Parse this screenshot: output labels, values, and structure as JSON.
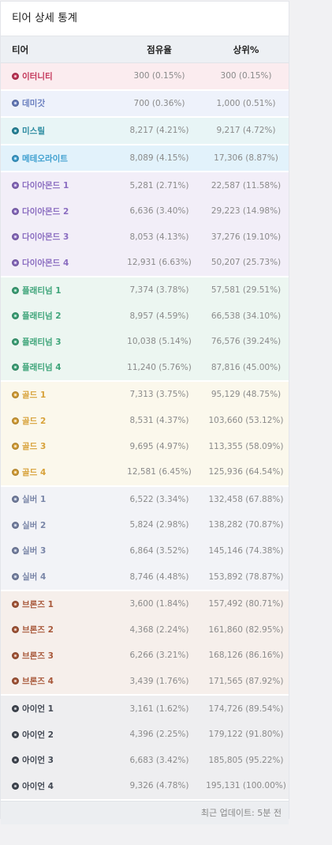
{
  "title": "티어 상세 통계",
  "headers": {
    "tier": "티어",
    "share": "점유율",
    "top": "상위%"
  },
  "footer": "최근 업데이트: 5분 전",
  "groups": [
    {
      "key": "eternity",
      "bg": "#fbecef",
      "color": "#c4375a",
      "icon": "eternity-gem-icon",
      "rows": [
        {
          "name": "이터니티",
          "share": "300 (0.15%)",
          "top": "300 (0.15%)"
        }
      ]
    },
    {
      "key": "demigod",
      "bg": "#eef2fb",
      "color": "#6a7fbf",
      "icon": "demigod-gem-icon",
      "rows": [
        {
          "name": "데미갓",
          "share": "700 (0.36%)",
          "top": "1,000 (0.51%)"
        }
      ]
    },
    {
      "key": "missile",
      "bg": "#e8f5f6",
      "color": "#2a8aa0",
      "icon": "missile-gem-icon",
      "rows": [
        {
          "name": "미스릴",
          "share": "8,217 (4.21%)",
          "top": "9,217 (4.72%)"
        }
      ]
    },
    {
      "key": "meteorite",
      "bg": "#e2f2fb",
      "color": "#3fa0d0",
      "icon": "meteorite-gem-icon",
      "rows": [
        {
          "name": "메테오라이트",
          "share": "8,089 (4.15%)",
          "top": "17,306 (8.87%)"
        }
      ]
    },
    {
      "key": "diamond",
      "bg": "#f2eef8",
      "color": "#8a6cc0",
      "icon": "diamond-gem-icon",
      "rows": [
        {
          "name": "다이아몬드 1",
          "share": "5,281 (2.71%)",
          "top": "22,587 (11.58%)"
        },
        {
          "name": "다이아몬드 2",
          "share": "6,636 (3.40%)",
          "top": "29,223 (14.98%)"
        },
        {
          "name": "다이아몬드 3",
          "share": "8,053 (4.13%)",
          "top": "37,276 (19.10%)"
        },
        {
          "name": "다이아몬드 4",
          "share": "12,931 (6.63%)",
          "top": "50,207 (25.73%)"
        }
      ]
    },
    {
      "key": "platinum",
      "bg": "#ecf6f1",
      "color": "#3fa57a",
      "icon": "platinum-gem-icon",
      "rows": [
        {
          "name": "플래티넘 1",
          "share": "7,374 (3.78%)",
          "top": "57,581 (29.51%)"
        },
        {
          "name": "플래티넘 2",
          "share": "8,957 (4.59%)",
          "top": "66,538 (34.10%)"
        },
        {
          "name": "플래티넘 3",
          "share": "10,038 (5.14%)",
          "top": "76,576 (39.24%)"
        },
        {
          "name": "플래티넘 4",
          "share": "11,240 (5.76%)",
          "top": "87,816 (45.00%)"
        }
      ]
    },
    {
      "key": "gold",
      "bg": "#fbf8ec",
      "color": "#d8a23a",
      "icon": "gold-gem-icon",
      "rows": [
        {
          "name": "골드 1",
          "share": "7,313 (3.75%)",
          "top": "95,129 (48.75%)"
        },
        {
          "name": "골드 2",
          "share": "8,531 (4.37%)",
          "top": "103,660 (53.12%)"
        },
        {
          "name": "골드 3",
          "share": "9,695 (4.97%)",
          "top": "113,355 (58.09%)"
        },
        {
          "name": "골드 4",
          "share": "12,581 (6.45%)",
          "top": "125,936 (64.54%)"
        }
      ]
    },
    {
      "key": "silver",
      "bg": "#f2f3f7",
      "color": "#7a86a8",
      "icon": "silver-gem-icon",
      "rows": [
        {
          "name": "실버 1",
          "share": "6,522 (3.34%)",
          "top": "132,458 (67.88%)"
        },
        {
          "name": "실버 2",
          "share": "5,824 (2.98%)",
          "top": "138,282 (70.87%)"
        },
        {
          "name": "실버 3",
          "share": "6,864 (3.52%)",
          "top": "145,146 (74.38%)"
        },
        {
          "name": "실버 4",
          "share": "8,746 (4.48%)",
          "top": "153,892 (78.87%)"
        }
      ]
    },
    {
      "key": "bronze",
      "bg": "#f6efeb",
      "color": "#a8583a",
      "icon": "bronze-gem-icon",
      "rows": [
        {
          "name": "브론즈 1",
          "share": "3,600 (1.84%)",
          "top": "157,492 (80.71%)"
        },
        {
          "name": "브론즈 2",
          "share": "4,368 (2.24%)",
          "top": "161,860 (82.95%)"
        },
        {
          "name": "브론즈 3",
          "share": "6,266 (3.21%)",
          "top": "168,126 (86.16%)"
        },
        {
          "name": "브론즈 4",
          "share": "3,439 (1.76%)",
          "top": "171,565 (87.92%)"
        }
      ]
    },
    {
      "key": "iron",
      "bg": "#eeeef0",
      "color": "#444a55",
      "icon": "iron-gem-icon",
      "rows": [
        {
          "name": "아이언 1",
          "share": "3,161 (1.62%)",
          "top": "174,726 (89.54%)"
        },
        {
          "name": "아이언 2",
          "share": "4,396 (2.25%)",
          "top": "179,122 (91.80%)"
        },
        {
          "name": "아이언 3",
          "share": "6,683 (3.42%)",
          "top": "185,805 (95.22%)"
        },
        {
          "name": "아이언 4",
          "share": "9,326 (4.78%)",
          "top": "195,131 (100.00%)"
        }
      ]
    }
  ]
}
